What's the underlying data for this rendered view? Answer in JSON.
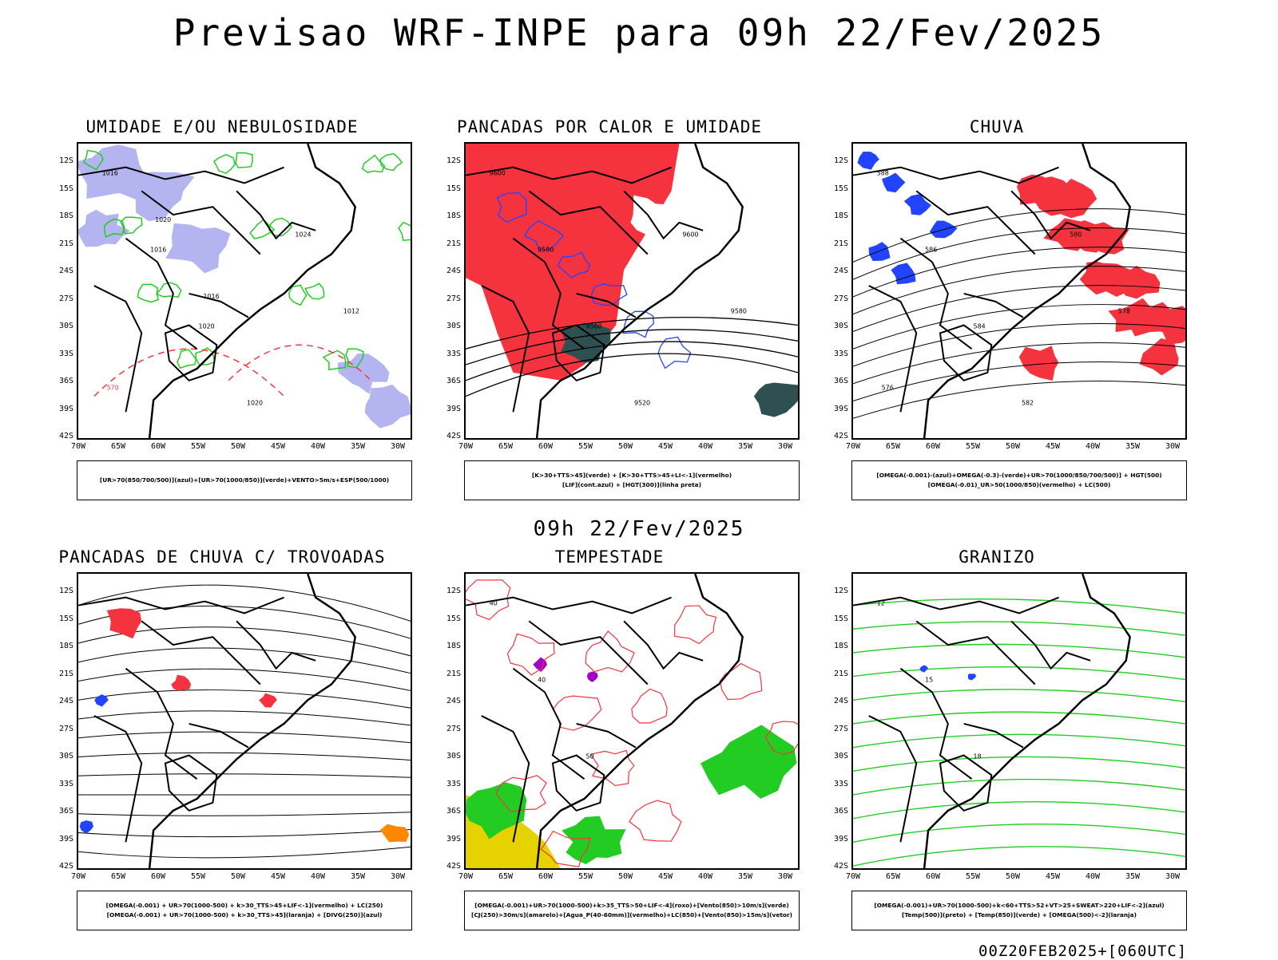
{
  "main_title": "Previsao WRF-INPE  para 09h 22/Fev/2025",
  "mid_time": "09h 22/Fev/2025",
  "footer": "00Z20FEB2025+[060UTC]",
  "lat_labels": [
    "12S",
    "15S",
    "18S",
    "21S",
    "24S",
    "27S",
    "30S",
    "33S",
    "36S",
    "39S",
    "42S"
  ],
  "lon_labels": [
    "70W",
    "65W",
    "60W",
    "55W",
    "50W",
    "45W",
    "40W",
    "35W",
    "30W"
  ],
  "colors": {
    "red": "#f5333f",
    "green": "#22cc22",
    "blue": "#2244ff",
    "lavender": "#b4b4f0",
    "darkteal": "#2f5050",
    "yellow": "#e6d200",
    "purple": "#a000c8",
    "orange": "#ff8800"
  },
  "panels": [
    {
      "title": "UMIDADE E/OU NEBULOSIDADE",
      "legend": [
        "[UR>70(850/700/500)](azul)+[UR>70(1000/850)](verde)+VENTO>5m/s+ESP(500/1000)"
      ],
      "contour_labels": [
        "1016",
        "1016",
        "1020",
        "1020",
        "1024",
        "1012",
        "570",
        "1020",
        "1016"
      ]
    },
    {
      "title": "PANCADAS POR CALOR E UMIDADE",
      "legend": [
        "[K>30+TTS>45](verde) + [K>30+TTS>45+LI<-1](vermelho)",
        "[LIF](cont.azul) + [HGT(300)](linha preta)"
      ],
      "contour_labels": [
        "9600",
        "9580",
        "9560",
        "9520",
        "9600",
        "9580"
      ]
    },
    {
      "title": "CHUVA",
      "legend": [
        "[OMEGA(-0.001)-(azul)+OMEGA(-0.3)-(verde)+UR>70(1000/850/700/500)] + HGT(500)",
        "[OMEGA(-0.01)_UR>50(1000/850)(vermelho) + LC(500)"
      ],
      "contour_labels": [
        "588",
        "586",
        "584",
        "582",
        "580",
        "578",
        "576"
      ]
    },
    {
      "title": "PANCADAS DE CHUVA C/ TROVOADAS",
      "legend": [
        "[OMEGA(-0.001) + UR>70(1000-500) + k>30_TTS>45+LIF<-1](vermelho) + LC(250)",
        "[OMEGA(-0.001) + UR>70(1000-500) + k>30_TTS>45](laranja) + [DIVG(250)](azul)"
      ],
      "contour_labels": []
    },
    {
      "title": "TEMPESTADE",
      "legend": [
        "[OMEGA(-0.001)+UR>70(1000-500)+k>35_TTS>50+LIF<-4](roxo)+[Vento(850)>10m/s](verde)",
        "[CJ(250)>30m/s](amarelo)+[Agua_P(40-60mm)](vermelho)+LC(850)+[Vento(850)>15m/s](vetor)"
      ],
      "contour_labels": [
        "40",
        "40",
        "50"
      ]
    },
    {
      "title": "GRANIZO",
      "legend": [
        "[OMEGA(-0.001)+UR>70(1000-500)+k<60+TTS>52+VT>25+SWEAT>220+LIF<-2](azul)",
        "[Temp(500)](preto) + [Temp(850)](verde) + [OMEGA(500)<-2](laranja)"
      ],
      "contour_labels": [
        "12",
        "15",
        "18"
      ]
    }
  ]
}
